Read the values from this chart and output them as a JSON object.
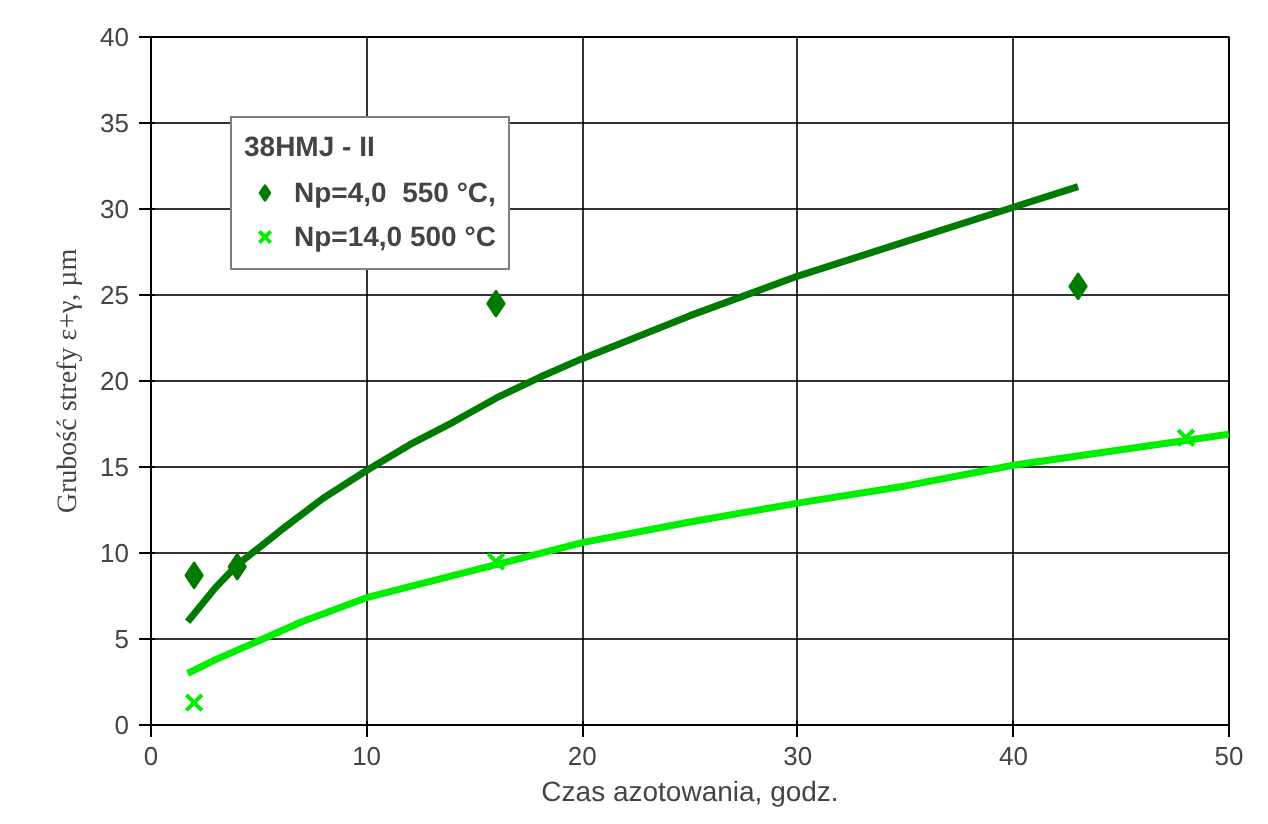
{
  "chart_data": {
    "type": "scatter",
    "xlabel": "Czas azotowania, godz.",
    "ylabel": "Grubość strefy ε+γ, µm",
    "legend_title": "38HMJ - II",
    "xlim": [
      0,
      50
    ],
    "ylim": [
      0,
      40
    ],
    "xticks": [
      0,
      10,
      20,
      30,
      40,
      50
    ],
    "yticks": [
      0,
      5,
      10,
      15,
      20,
      25,
      30,
      35,
      40
    ],
    "grid": true,
    "legend": "top left",
    "series": [
      {
        "name": "Np=4,0  550 °C,",
        "type": "scatter",
        "marker": "diamond",
        "color": "#007a00",
        "x": [
          2,
          4,
          16,
          43
        ],
        "values": [
          8.7,
          9.2,
          24.5,
          25.5
        ]
      },
      {
        "type": "line",
        "marker": "none",
        "color": "#007a00",
        "x": [
          1.7,
          3,
          4,
          6,
          8,
          10,
          12,
          14,
          16,
          18,
          20,
          25,
          30,
          35,
          40,
          43
        ],
        "values": [
          6,
          8,
          9.3,
          11.3,
          13.2,
          14.8,
          16.3,
          17.6,
          19,
          20.2,
          21.3,
          23.8,
          26.1,
          28.1,
          30.1,
          31.3
        ]
      },
      {
        "name": "Np=14,0 500 °C",
        "type": "scatter",
        "marker": "cross",
        "color": "#00ee00",
        "x": [
          2,
          16,
          48
        ],
        "values": [
          1.3,
          9.5,
          16.7
        ]
      },
      {
        "type": "line",
        "marker": "none",
        "color": "#00ee00",
        "x": [
          1.7,
          3,
          5,
          7,
          10,
          15,
          20,
          25,
          30,
          35,
          40,
          45,
          50
        ],
        "values": [
          3,
          3.8,
          4.9,
          6,
          7.4,
          9,
          10.6,
          11.8,
          12.9,
          13.9,
          15.1,
          16,
          16.9
        ]
      }
    ]
  }
}
